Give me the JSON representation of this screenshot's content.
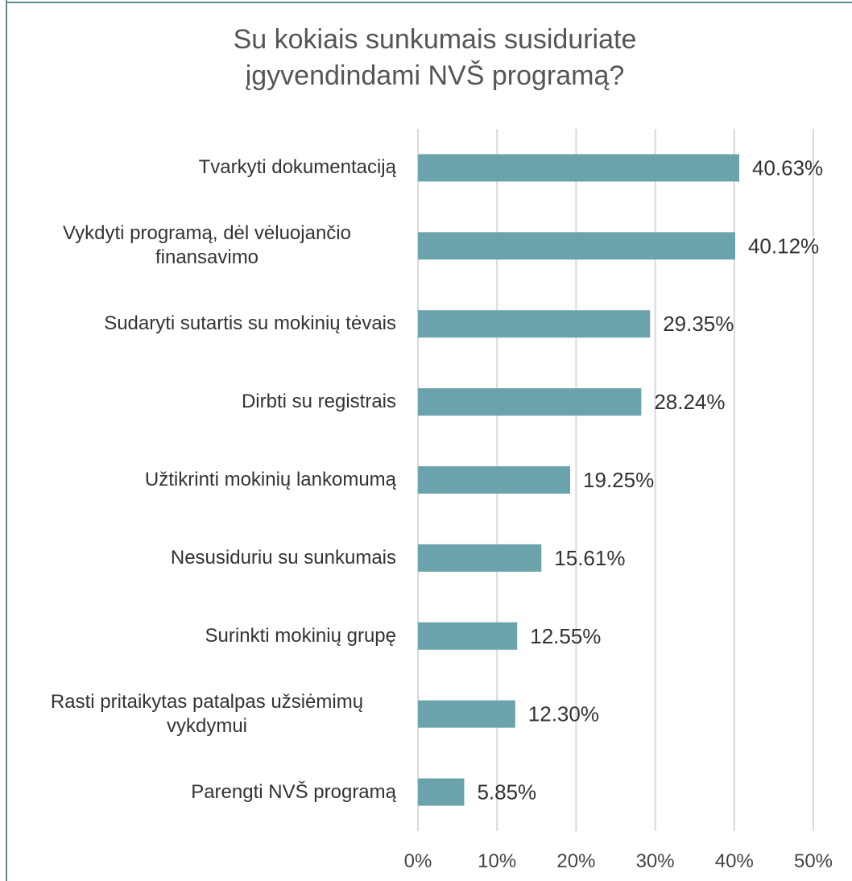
{
  "chart_data": {
    "type": "bar",
    "orientation": "horizontal",
    "title": "Su kokiais sunkumais susiduriate įgyvendindami NVŠ programą?",
    "categories": [
      "Tvarkyti dokumentaciją",
      "Vykdyti programą, dėl vėluojančio finansavimo",
      "Sudaryti sutartis su mokinių tėvais",
      "Dirbti su registrais",
      "Užtikrinti mokinių lankomumą",
      "Nesusiduriu su sunkumais",
      "Surinkti mokinių grupę",
      "Rasti pritaikytas patalpas užsiėmimų vykdymui",
      "Parengti NVŠ programą"
    ],
    "values": [
      40.63,
      40.12,
      29.35,
      28.24,
      19.25,
      15.61,
      12.55,
      12.3,
      5.85
    ],
    "value_labels": [
      "40.63%",
      "40.12%",
      "29.35%",
      "28.24%",
      "19.25%",
      "15.61%",
      "12.55%",
      "12.30%",
      "5.85%"
    ],
    "color": "#6aa3ab",
    "xlim": [
      0,
      50
    ],
    "xticks": [
      {
        "value": 0,
        "label": "0%"
      },
      {
        "value": 10,
        "label": "10%"
      },
      {
        "value": 20,
        "label": "20%"
      },
      {
        "value": 30,
        "label": "30%"
      },
      {
        "value": 40,
        "label": "40%"
      },
      {
        "value": 50,
        "label": "50%"
      }
    ],
    "grid": true
  }
}
